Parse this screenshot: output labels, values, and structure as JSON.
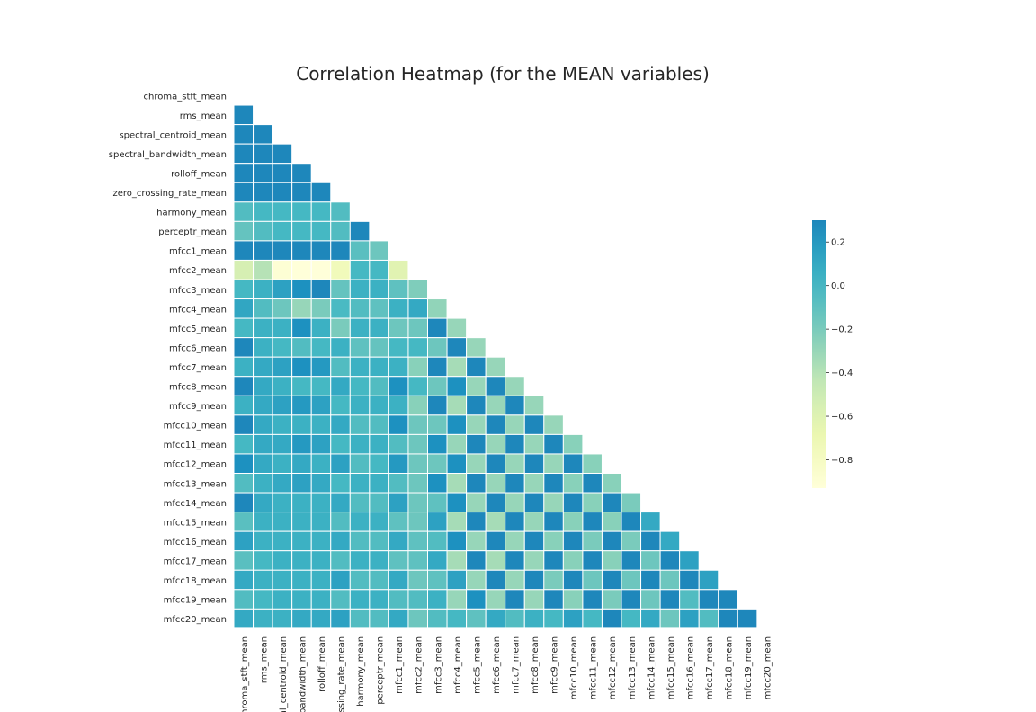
{
  "chart_data": {
    "type": "heatmap",
    "title": "Correlation Heatmap (for the MEAN variables)",
    "mask": "upper-triangle incl. diagonal",
    "colormap": "YlGnBu",
    "colorbar": {
      "vmin": -0.93,
      "vmax": 0.3,
      "ticks": [
        0.2,
        0.0,
        -0.2,
        -0.4,
        -0.6,
        -0.8
      ],
      "tick_labels": [
        "0.2",
        "0.0",
        "−0.2",
        "−0.4",
        "−0.6",
        "−0.8"
      ]
    },
    "labels": [
      "chroma_stft_mean",
      "rms_mean",
      "spectral_centroid_mean",
      "spectral_bandwidth_mean",
      "rolloff_mean",
      "zero_crossing_rate_mean",
      "harmony_mean",
      "perceptr_mean",
      "mfcc1_mean",
      "mfcc2_mean",
      "mfcc3_mean",
      "mfcc4_mean",
      "mfcc5_mean",
      "mfcc6_mean",
      "mfcc7_mean",
      "mfcc8_mean",
      "mfcc9_mean",
      "mfcc10_mean",
      "mfcc11_mean",
      "mfcc12_mean",
      "mfcc13_mean",
      "mfcc14_mean",
      "mfcc15_mean",
      "mfcc16_mean",
      "mfcc17_mean",
      "mfcc18_mean",
      "mfcc19_mean",
      "mfcc20_mean"
    ],
    "x_tick_labels": [
      "chroma_stft_mean",
      "rms_mean",
      "al_centroid_mean",
      "_bandwidth_mean",
      "rolloff_mean",
      "ossing_rate_mean",
      "harmony_mean",
      "perceptr_mean",
      "mfcc1_mean",
      "mfcc2_mean",
      "mfcc3_mean",
      "mfcc4_mean",
      "mfcc5_mean",
      "mfcc6_mean",
      "mfcc7_mean",
      "mfcc8_mean",
      "mfcc9_mean",
      "mfcc10_mean",
      "mfcc11_mean",
      "mfcc12_mean",
      "mfcc13_mean",
      "mfcc14_mean",
      "mfcc15_mean",
      "mfcc16_mean",
      "mfcc17_mean",
      "mfcc18_mean",
      "mfcc19_mean",
      "mfcc20_mean"
    ],
    "values": [
      [],
      [
        0.3
      ],
      [
        0.3,
        0.3
      ],
      [
        0.3,
        0.3,
        0.3
      ],
      [
        0.3,
        0.3,
        0.3,
        0.3
      ],
      [
        0.3,
        0.3,
        0.3,
        0.3,
        0.3
      ],
      [
        -0.05,
        0.0,
        0.0,
        0.0,
        0.0,
        -0.05
      ],
      [
        -0.12,
        -0.05,
        0.0,
        0.0,
        0.0,
        -0.05,
        0.3
      ],
      [
        0.3,
        0.3,
        0.3,
        0.3,
        0.3,
        0.3,
        -0.08,
        -0.15
      ],
      [
        -0.55,
        -0.4,
        -0.9,
        -0.93,
        -0.93,
        -0.75,
        0.0,
        0.0,
        -0.62
      ],
      [
        0.0,
        0.05,
        0.15,
        0.25,
        0.3,
        -0.12,
        0.05,
        0.05,
        -0.1,
        -0.22
      ],
      [
        0.12,
        -0.05,
        -0.15,
        -0.3,
        -0.2,
        -0.02,
        -0.05,
        -0.1,
        0.05,
        0.1,
        -0.28
      ],
      [
        0.0,
        0.05,
        0.05,
        0.25,
        0.05,
        -0.2,
        0.05,
        0.05,
        -0.15,
        -0.15,
        0.3,
        -0.3
      ],
      [
        0.3,
        0.05,
        0.0,
        -0.05,
        0.0,
        0.05,
        -0.1,
        -0.12,
        0.0,
        0.0,
        -0.15,
        0.3,
        -0.3
      ],
      [
        0.05,
        0.1,
        0.15,
        0.25,
        0.2,
        -0.05,
        0.05,
        0.05,
        0.05,
        -0.25,
        0.3,
        -0.35,
        0.3,
        -0.3
      ],
      [
        0.3,
        0.1,
        0.05,
        0.0,
        0.0,
        0.1,
        0.0,
        -0.05,
        0.25,
        0.0,
        -0.15,
        0.25,
        -0.3,
        0.3,
        -0.3
      ],
      [
        0.05,
        0.1,
        0.15,
        0.2,
        0.15,
        0.0,
        0.05,
        0.05,
        0.05,
        -0.25,
        0.3,
        -0.35,
        0.3,
        -0.3,
        0.3,
        -0.3
      ],
      [
        0.3,
        0.1,
        0.05,
        0.05,
        0.05,
        0.1,
        -0.05,
        -0.05,
        0.25,
        -0.15,
        -0.15,
        0.25,
        -0.3,
        0.3,
        -0.3,
        0.3,
        -0.3
      ],
      [
        0.0,
        0.1,
        0.1,
        0.2,
        0.15,
        0.0,
        0.05,
        0.05,
        -0.05,
        -0.15,
        0.25,
        -0.3,
        0.3,
        -0.3,
        0.3,
        -0.3,
        0.3,
        -0.25
      ],
      [
        0.25,
        0.1,
        0.05,
        0.1,
        0.05,
        0.15,
        -0.05,
        0.0,
        0.2,
        -0.15,
        -0.15,
        0.25,
        -0.3,
        0.3,
        -0.3,
        0.3,
        -0.3,
        0.3,
        -0.25
      ],
      [
        -0.05,
        0.05,
        0.1,
        0.15,
        0.1,
        0.0,
        0.05,
        0.05,
        -0.05,
        -0.15,
        0.25,
        -0.35,
        0.3,
        -0.3,
        0.3,
        -0.3,
        0.3,
        -0.25,
        0.3,
        -0.25
      ],
      [
        0.3,
        0.1,
        0.05,
        0.05,
        0.05,
        0.1,
        -0.05,
        -0.05,
        0.15,
        -0.15,
        -0.1,
        0.25,
        -0.3,
        0.3,
        -0.3,
        0.3,
        -0.3,
        0.3,
        -0.25,
        0.3,
        -0.2
      ],
      [
        -0.08,
        0.05,
        0.05,
        0.05,
        0.05,
        -0.05,
        0.05,
        0.05,
        -0.1,
        -0.15,
        0.15,
        -0.35,
        0.3,
        -0.35,
        0.3,
        -0.3,
        0.3,
        -0.25,
        0.3,
        -0.25,
        0.3,
        0.1
      ],
      [
        0.15,
        0.05,
        0.05,
        0.05,
        0.05,
        0.1,
        -0.05,
        -0.05,
        0.1,
        -0.1,
        -0.05,
        0.25,
        -0.3,
        0.3,
        -0.3,
        0.3,
        -0.25,
        0.3,
        -0.2,
        0.3,
        -0.2,
        0.3,
        0.1
      ],
      [
        -0.08,
        0.0,
        0.05,
        0.05,
        0.05,
        -0.05,
        0.05,
        0.05,
        -0.1,
        -0.1,
        0.1,
        -0.35,
        0.3,
        -0.35,
        0.3,
        -0.3,
        0.3,
        -0.25,
        0.3,
        -0.25,
        0.3,
        -0.15,
        0.3,
        0.15
      ],
      [
        0.1,
        0.05,
        0.05,
        0.05,
        0.05,
        0.15,
        -0.05,
        -0.05,
        0.1,
        -0.15,
        -0.1,
        0.15,
        -0.3,
        0.3,
        -0.3,
        0.3,
        -0.2,
        0.3,
        -0.15,
        0.3,
        -0.15,
        0.3,
        -0.15,
        0.3,
        0.15
      ],
      [
        -0.05,
        0.0,
        0.05,
        0.05,
        0.05,
        -0.05,
        0.05,
        0.05,
        -0.05,
        -0.05,
        0.05,
        -0.3,
        0.25,
        -0.3,
        0.3,
        -0.3,
        0.3,
        -0.25,
        0.3,
        -0.2,
        0.3,
        -0.15,
        0.3,
        -0.05,
        0.3,
        0.3
      ],
      [
        0.1,
        0.05,
        0.05,
        0.1,
        0.1,
        0.15,
        -0.05,
        -0.05,
        0.1,
        -0.15,
        -0.05,
        0.0,
        -0.1,
        0.1,
        -0.05,
        0.05,
        0.0,
        0.15,
        0.0,
        0.3,
        0.0,
        0.1,
        -0.15,
        0.15,
        -0.05,
        0.3,
        0.3
      ]
    ]
  }
}
